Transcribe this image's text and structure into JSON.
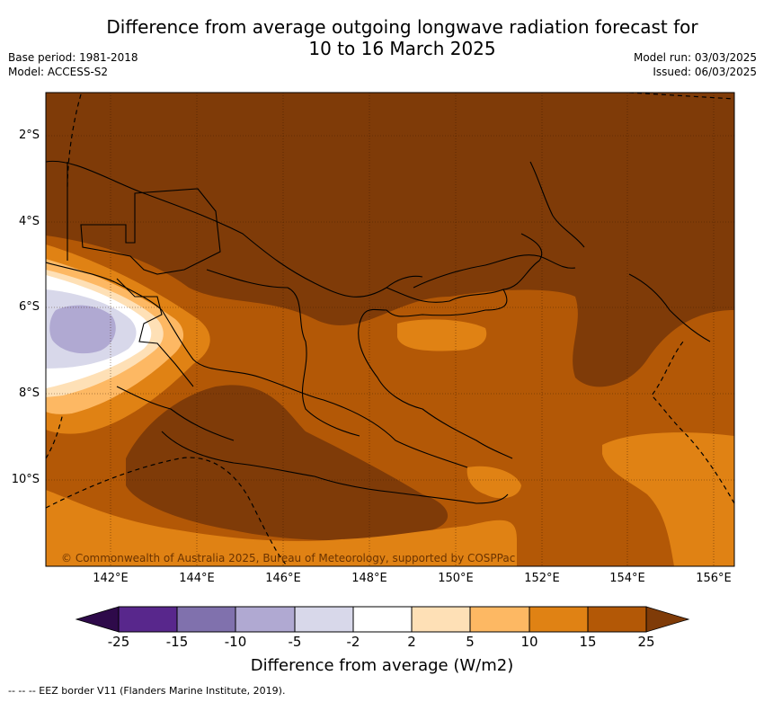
{
  "header": {
    "title_line1": "Difference from average outgoing longwave radiation forecast for",
    "title_line2": "10 to 16 March 2025",
    "base_period": "Base period: 1981-2018",
    "model": "Model: ACCESS-S2",
    "model_run": "Model run: 03/03/2025",
    "issued": "Issued: 06/03/2025"
  },
  "map": {
    "copyright": "© Commonwealth of Australia 2025, Bureau of Meteorology, supported by COSPPac",
    "lat_ticks": [
      "2°S",
      "4°S",
      "6°S",
      "8°S",
      "10°S"
    ],
    "lon_ticks": [
      "142°E",
      "144°E",
      "146°E",
      "148°E",
      "150°E",
      "152°E",
      "154°E",
      "156°E"
    ]
  },
  "colorbar": {
    "labels": [
      "-25",
      "-15",
      "-10",
      "-5",
      "-2",
      "2",
      "5",
      "10",
      "15",
      "25"
    ],
    "colors": [
      "#2e0a4a",
      "#58278c",
      "#8071ad",
      "#b0a9d2",
      "#d8d8ea",
      "#ffffff",
      "#fee0b6",
      "#fdb863",
      "#e08214",
      "#b35806",
      "#7f3b08"
    ],
    "title": "Difference from average (W/m2)"
  },
  "legend": {
    "eez_note": "-- -- -- EEZ border V11 (Flanders Marine Institute, 2019)."
  }
}
